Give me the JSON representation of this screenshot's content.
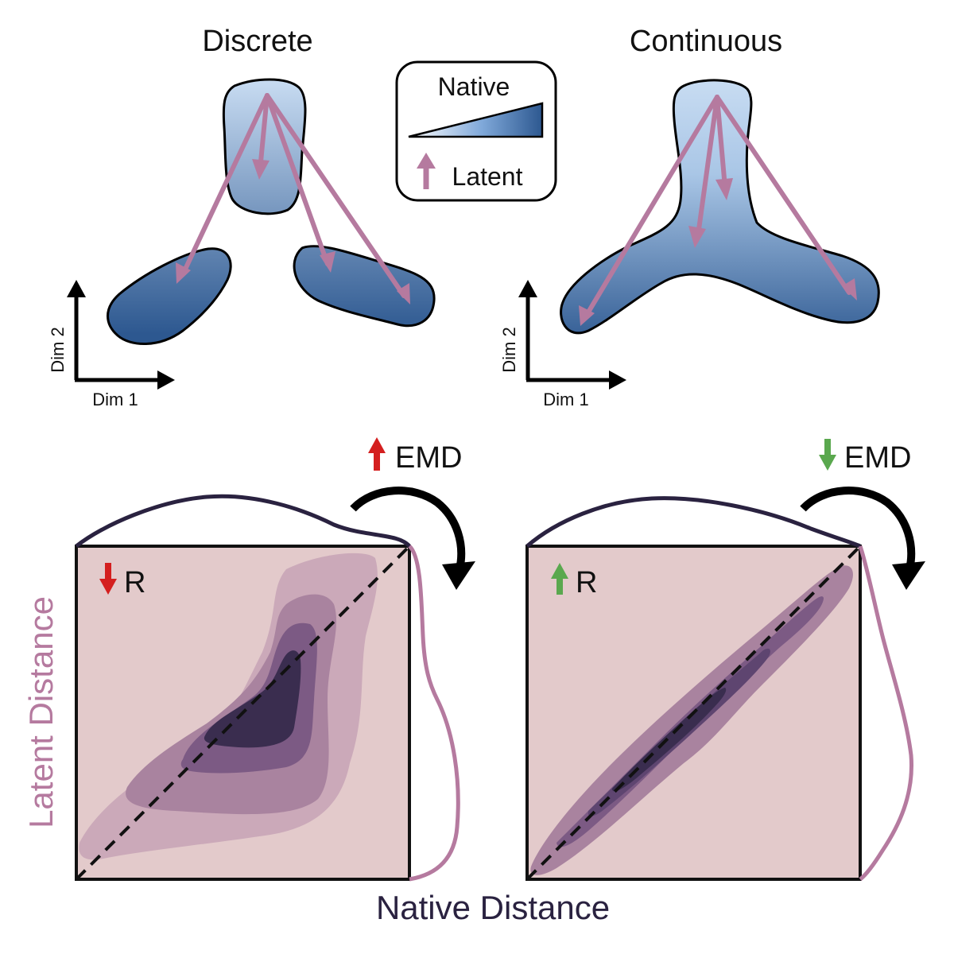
{
  "top": {
    "discrete": {
      "title": "Discrete",
      "dim1": "Dim 1",
      "dim2": "Dim 2"
    },
    "continuous": {
      "title": "Continuous",
      "dim1": "Dim 1",
      "dim2": "Dim 2"
    }
  },
  "legend": {
    "native": "Native",
    "latent": "Latent"
  },
  "bottom": {
    "left": {
      "metric_label": "EMD",
      "metric_dir": "up",
      "corr_label": "R",
      "corr_dir": "down"
    },
    "right": {
      "metric_label": "EMD",
      "metric_dir": "down",
      "corr_label": "R",
      "corr_dir": "up"
    },
    "x_axis_label": "Native Distance",
    "y_axis_label": "Latent Distance"
  },
  "colors": {
    "blob_top": "#c8dcf2",
    "blob_bottom": "#2d5890",
    "arrow_mauve": "#b57a9f",
    "kde_background": "#e3cacb",
    "kde_level1": "#cba9b9",
    "kde_level2": "#a9839f",
    "kde_level3": "#7c5a84",
    "kde_level4": "#3a2d4f",
    "native_line": "#2a2240",
    "latent_line": "#b57a9f",
    "up_red": "#d41f1f",
    "down_red": "#d41f1f",
    "up_green": "#5aa84e",
    "down_green": "#5aa84e"
  }
}
